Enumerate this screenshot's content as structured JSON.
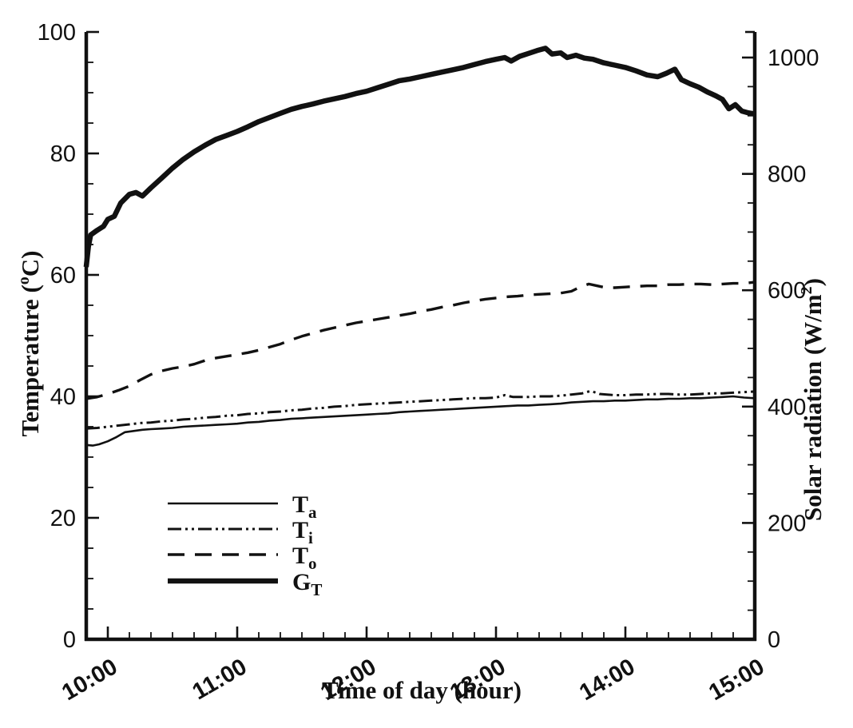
{
  "figure": {
    "background": "#ffffff",
    "ink": "#111111"
  },
  "chart_data": {
    "type": "line",
    "title": "",
    "xlabel": "Time of day (hour)",
    "ylabel_left": {
      "prefix": "Temperature (",
      "sup": "o",
      "suffix": "C)"
    },
    "ylabel_right": {
      "prefix": "Solar radiation (W/m",
      "sup": "2",
      "suffix": ")"
    },
    "axes": {
      "x": {
        "start_hour": 9.833,
        "end_hour": 15.0,
        "minor_every_minutes": 10,
        "major_every_hours": 1,
        "labels": [
          "10:00",
          "11:00",
          "12:00",
          "13:00",
          "14:00",
          "15:00"
        ],
        "label_rotation_deg": -30
      },
      "left": {
        "min": 0,
        "max": 100,
        "minor_step": 5,
        "major_step": 20,
        "labels": [
          "0",
          "20",
          "40",
          "60",
          "80",
          "100"
        ]
      },
      "right": {
        "min": 0,
        "max": 1047,
        "minor_step": 50,
        "major_step": 200,
        "labels": [
          "0",
          "200",
          "400",
          "600",
          "800",
          "1000"
        ]
      }
    },
    "grid": false,
    "legend_position": "lower-left-inside",
    "series": [
      {
        "id": "Ta",
        "axis": "left",
        "style": "thin-solid",
        "legend": {
          "main": "T",
          "sub": "a"
        },
        "points": [
          [
            9.833,
            32.0
          ],
          [
            9.883,
            31.9
          ],
          [
            9.933,
            32.1
          ],
          [
            10.0,
            32.6
          ],
          [
            10.067,
            33.3
          ],
          [
            10.133,
            34.1
          ],
          [
            10.2,
            34.3
          ],
          [
            10.267,
            34.5
          ],
          [
            10.333,
            34.6
          ],
          [
            10.417,
            34.7
          ],
          [
            10.5,
            34.8
          ],
          [
            10.583,
            35.0
          ],
          [
            10.667,
            35.1
          ],
          [
            10.75,
            35.2
          ],
          [
            10.833,
            35.3
          ],
          [
            10.917,
            35.4
          ],
          [
            11.0,
            35.5
          ],
          [
            11.083,
            35.7
          ],
          [
            11.167,
            35.8
          ],
          [
            11.25,
            36.0
          ],
          [
            11.333,
            36.1
          ],
          [
            11.417,
            36.3
          ],
          [
            11.5,
            36.4
          ],
          [
            11.583,
            36.5
          ],
          [
            11.667,
            36.6
          ],
          [
            11.75,
            36.7
          ],
          [
            11.833,
            36.8
          ],
          [
            11.917,
            36.9
          ],
          [
            12.0,
            37.0
          ],
          [
            12.083,
            37.1
          ],
          [
            12.167,
            37.2
          ],
          [
            12.25,
            37.4
          ],
          [
            12.333,
            37.5
          ],
          [
            12.417,
            37.6
          ],
          [
            12.5,
            37.7
          ],
          [
            12.583,
            37.8
          ],
          [
            12.667,
            37.9
          ],
          [
            12.75,
            38.0
          ],
          [
            12.833,
            38.1
          ],
          [
            12.917,
            38.2
          ],
          [
            13.0,
            38.3
          ],
          [
            13.083,
            38.4
          ],
          [
            13.167,
            38.5
          ],
          [
            13.25,
            38.5
          ],
          [
            13.333,
            38.6
          ],
          [
            13.417,
            38.7
          ],
          [
            13.5,
            38.8
          ],
          [
            13.583,
            39.0
          ],
          [
            13.667,
            39.1
          ],
          [
            13.75,
            39.2
          ],
          [
            13.833,
            39.2
          ],
          [
            13.917,
            39.3
          ],
          [
            14.0,
            39.3
          ],
          [
            14.083,
            39.4
          ],
          [
            14.167,
            39.5
          ],
          [
            14.25,
            39.5
          ],
          [
            14.333,
            39.6
          ],
          [
            14.417,
            39.6
          ],
          [
            14.5,
            39.7
          ],
          [
            14.583,
            39.7
          ],
          [
            14.667,
            39.8
          ],
          [
            14.75,
            39.9
          ],
          [
            14.833,
            40.0
          ],
          [
            14.917,
            39.8
          ],
          [
            15.0,
            39.7
          ]
        ]
      },
      {
        "id": "Ti",
        "axis": "left",
        "style": "dash-dot-dot",
        "legend": {
          "main": "T",
          "sub": "i"
        },
        "points": [
          [
            9.833,
            34.7
          ],
          [
            9.917,
            34.8
          ],
          [
            10.0,
            35.0
          ],
          [
            10.083,
            35.2
          ],
          [
            10.167,
            35.4
          ],
          [
            10.25,
            35.6
          ],
          [
            10.333,
            35.7
          ],
          [
            10.417,
            35.9
          ],
          [
            10.5,
            36.0
          ],
          [
            10.583,
            36.2
          ],
          [
            10.667,
            36.3
          ],
          [
            10.75,
            36.5
          ],
          [
            10.833,
            36.6
          ],
          [
            10.917,
            36.8
          ],
          [
            11.0,
            36.9
          ],
          [
            11.083,
            37.1
          ],
          [
            11.167,
            37.2
          ],
          [
            11.25,
            37.4
          ],
          [
            11.333,
            37.5
          ],
          [
            11.417,
            37.7
          ],
          [
            11.5,
            37.8
          ],
          [
            11.583,
            38.0
          ],
          [
            11.667,
            38.1
          ],
          [
            11.75,
            38.3
          ],
          [
            11.833,
            38.4
          ],
          [
            11.917,
            38.6
          ],
          [
            12.0,
            38.7
          ],
          [
            12.083,
            38.8
          ],
          [
            12.167,
            38.9
          ],
          [
            12.25,
            39.0
          ],
          [
            12.333,
            39.1
          ],
          [
            12.417,
            39.2
          ],
          [
            12.5,
            39.3
          ],
          [
            12.583,
            39.4
          ],
          [
            12.667,
            39.5
          ],
          [
            12.75,
            39.6
          ],
          [
            12.833,
            39.7
          ],
          [
            12.917,
            39.7
          ],
          [
            13.0,
            39.8
          ],
          [
            13.067,
            40.2
          ],
          [
            13.133,
            39.9
          ],
          [
            13.25,
            39.9
          ],
          [
            13.333,
            40.0
          ],
          [
            13.417,
            40.0
          ],
          [
            13.5,
            40.1
          ],
          [
            13.583,
            40.3
          ],
          [
            13.667,
            40.5
          ],
          [
            13.733,
            40.9
          ],
          [
            13.8,
            40.4
          ],
          [
            13.917,
            40.2
          ],
          [
            14.0,
            40.2
          ],
          [
            14.083,
            40.3
          ],
          [
            14.167,
            40.3
          ],
          [
            14.25,
            40.4
          ],
          [
            14.333,
            40.4
          ],
          [
            14.417,
            40.3
          ],
          [
            14.5,
            40.3
          ],
          [
            14.583,
            40.4
          ],
          [
            14.667,
            40.5
          ],
          [
            14.75,
            40.5
          ],
          [
            14.833,
            40.6
          ],
          [
            14.917,
            40.7
          ],
          [
            15.0,
            40.8
          ]
        ]
      },
      {
        "id": "To",
        "axis": "left",
        "style": "dashed",
        "legend": {
          "main": "T",
          "sub": "o"
        },
        "points": [
          [
            9.833,
            39.6
          ],
          [
            9.917,
            39.9
          ],
          [
            10.0,
            40.4
          ],
          [
            10.083,
            41.0
          ],
          [
            10.167,
            41.7
          ],
          [
            10.25,
            42.7
          ],
          [
            10.333,
            43.6
          ],
          [
            10.417,
            44.2
          ],
          [
            10.5,
            44.6
          ],
          [
            10.583,
            44.9
          ],
          [
            10.667,
            45.3
          ],
          [
            10.75,
            45.9
          ],
          [
            10.833,
            46.3
          ],
          [
            10.917,
            46.6
          ],
          [
            11.0,
            46.9
          ],
          [
            11.083,
            47.2
          ],
          [
            11.167,
            47.6
          ],
          [
            11.25,
            48.1
          ],
          [
            11.333,
            48.6
          ],
          [
            11.417,
            49.3
          ],
          [
            11.5,
            49.9
          ],
          [
            11.583,
            50.4
          ],
          [
            11.667,
            50.9
          ],
          [
            11.75,
            51.3
          ],
          [
            11.833,
            51.7
          ],
          [
            11.917,
            52.1
          ],
          [
            12.0,
            52.4
          ],
          [
            12.083,
            52.7
          ],
          [
            12.167,
            53.0
          ],
          [
            12.25,
            53.3
          ],
          [
            12.333,
            53.6
          ],
          [
            12.417,
            54.0
          ],
          [
            12.5,
            54.3
          ],
          [
            12.583,
            54.7
          ],
          [
            12.667,
            55.0
          ],
          [
            12.75,
            55.4
          ],
          [
            12.833,
            55.7
          ],
          [
            12.917,
            56.0
          ],
          [
            13.0,
            56.2
          ],
          [
            13.083,
            56.4
          ],
          [
            13.167,
            56.5
          ],
          [
            13.25,
            56.7
          ],
          [
            13.333,
            56.8
          ],
          [
            13.417,
            56.9
          ],
          [
            13.5,
            57.0
          ],
          [
            13.583,
            57.3
          ],
          [
            13.65,
            58.0
          ],
          [
            13.717,
            58.5
          ],
          [
            13.783,
            58.2
          ],
          [
            13.85,
            57.9
          ],
          [
            13.917,
            57.9
          ],
          [
            14.0,
            58.0
          ],
          [
            14.083,
            58.1
          ],
          [
            14.167,
            58.2
          ],
          [
            14.25,
            58.2
          ],
          [
            14.333,
            58.4
          ],
          [
            14.417,
            58.4
          ],
          [
            14.5,
            58.5
          ],
          [
            14.583,
            58.5
          ],
          [
            14.667,
            58.4
          ],
          [
            14.75,
            58.5
          ],
          [
            14.833,
            58.6
          ],
          [
            14.917,
            58.6
          ],
          [
            15.0,
            58.8
          ]
        ]
      },
      {
        "id": "GT",
        "axis": "right",
        "style": "thick-solid",
        "legend": {
          "main": "G",
          "sub": "T"
        },
        "points": [
          [
            9.833,
            640
          ],
          [
            9.85,
            675
          ],
          [
            9.867,
            695
          ],
          [
            9.917,
            703
          ],
          [
            9.967,
            710
          ],
          [
            10.0,
            722
          ],
          [
            10.05,
            727
          ],
          [
            10.1,
            750
          ],
          [
            10.167,
            765
          ],
          [
            10.217,
            768
          ],
          [
            10.267,
            762
          ],
          [
            10.333,
            776
          ],
          [
            10.417,
            793
          ],
          [
            10.5,
            810
          ],
          [
            10.583,
            825
          ],
          [
            10.667,
            838
          ],
          [
            10.75,
            849
          ],
          [
            10.833,
            859
          ],
          [
            10.917,
            866
          ],
          [
            11.0,
            873
          ],
          [
            11.083,
            881
          ],
          [
            11.167,
            890
          ],
          [
            11.25,
            897
          ],
          [
            11.333,
            904
          ],
          [
            11.417,
            911
          ],
          [
            11.5,
            916
          ],
          [
            11.583,
            920
          ],
          [
            11.667,
            925
          ],
          [
            11.75,
            929
          ],
          [
            11.833,
            933
          ],
          [
            11.917,
            938
          ],
          [
            12.0,
            942
          ],
          [
            12.083,
            948
          ],
          [
            12.167,
            954
          ],
          [
            12.25,
            960
          ],
          [
            12.333,
            963
          ],
          [
            12.417,
            967
          ],
          [
            12.5,
            971
          ],
          [
            12.583,
            975
          ],
          [
            12.667,
            979
          ],
          [
            12.75,
            983
          ],
          [
            12.833,
            988
          ],
          [
            12.917,
            993
          ],
          [
            13.0,
            997
          ],
          [
            13.067,
            1000
          ],
          [
            13.117,
            994
          ],
          [
            13.183,
            1002
          ],
          [
            13.25,
            1007
          ],
          [
            13.317,
            1012
          ],
          [
            13.383,
            1016
          ],
          [
            13.433,
            1006
          ],
          [
            13.5,
            1008
          ],
          [
            13.55,
            1000
          ],
          [
            13.617,
            1004
          ],
          [
            13.683,
            999
          ],
          [
            13.75,
            997
          ],
          [
            13.833,
            991
          ],
          [
            13.917,
            987
          ],
          [
            14.0,
            983
          ],
          [
            14.083,
            977
          ],
          [
            14.167,
            970
          ],
          [
            14.25,
            967
          ],
          [
            14.317,
            973
          ],
          [
            14.383,
            980
          ],
          [
            14.433,
            962
          ],
          [
            14.5,
            955
          ],
          [
            14.567,
            949
          ],
          [
            14.633,
            941
          ],
          [
            14.7,
            934
          ],
          [
            14.75,
            928
          ],
          [
            14.8,
            912
          ],
          [
            14.85,
            919
          ],
          [
            14.9,
            908
          ],
          [
            14.95,
            905
          ],
          [
            15.0,
            903
          ]
        ]
      }
    ]
  }
}
